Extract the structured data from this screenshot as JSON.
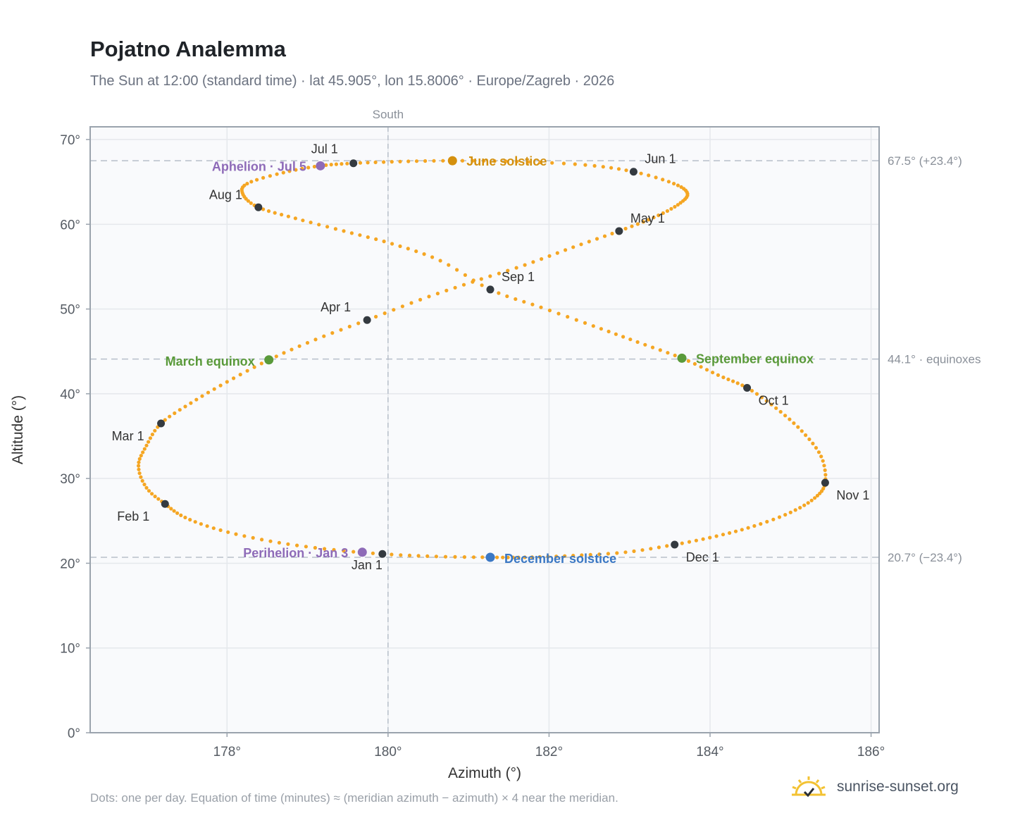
{
  "header": {
    "title": "Pojatno Analemma",
    "subtitle": "The Sun at 12:00 (standard time) · lat 45.905°, lon 15.8006° · Europe/Zagreb · 2026"
  },
  "footer": {
    "note": "Dots: one per day. Equation of time (minutes) ≈ (meridian azimuth − azimuth) × 4 near the meridian.",
    "brand": "sunrise-sunset.org",
    "brand_icon": "sun-icon"
  },
  "colors": {
    "curve": "#f5a623",
    "month_marker": "#343a40",
    "solstice_june": "#d4900e",
    "solstice_december": "#3b78c4",
    "equinox": "#5a9a3a",
    "apsis": "#8e6bb8",
    "grid": "#e5e8ec",
    "reference_line": "#b7bfca",
    "frame": "#9aa3ad",
    "plot_bg": "#f9fafc"
  },
  "chart_data": {
    "type": "scatter",
    "title": "Pojatno Analemma",
    "xlabel": "Azimuth (°)",
    "ylabel": "Altitude (°)",
    "xlim": [
      176.3,
      186.1
    ],
    "ylim": [
      0,
      71.5
    ],
    "xticks": [
      178,
      180,
      182,
      184,
      186
    ],
    "xtick_labels": [
      "178°",
      "180°",
      "182°",
      "184°",
      "186°"
    ],
    "yticks": [
      0,
      10,
      20,
      30,
      40,
      50,
      60,
      70
    ],
    "ytick_labels": [
      "0°",
      "10°",
      "20°",
      "30°",
      "40°",
      "50°",
      "60°",
      "70°"
    ],
    "grid": true,
    "meridian": {
      "azimuth": 180,
      "label": "South"
    },
    "reference_lines": [
      {
        "altitude": 67.5,
        "label": "67.5° (+23.4°)"
      },
      {
        "altitude": 44.1,
        "label": "44.1° · equinoxes"
      },
      {
        "altitude": 20.7,
        "label": "20.7° (−23.4°)"
      }
    ],
    "series": [
      {
        "kind": "daily_positions",
        "points": [
          [
            179.93,
            21.1
          ],
          [
            179.21,
            21.7
          ],
          [
            178.54,
            22.6
          ],
          [
            177.92,
            23.9
          ],
          [
            177.48,
            25.4
          ],
          [
            177.23,
            27.0
          ],
          [
            177.0,
            28.9
          ],
          [
            176.9,
            31.5
          ],
          [
            177.0,
            33.9
          ],
          [
            177.18,
            36.5
          ],
          [
            177.55,
            38.9
          ],
          [
            178.0,
            41.4
          ],
          [
            178.52,
            44.0
          ],
          [
            179.1,
            46.4
          ],
          [
            179.74,
            48.7
          ],
          [
            180.4,
            51.1
          ],
          [
            181.05,
            53.2
          ],
          [
            181.7,
            55.2
          ],
          [
            182.3,
            57.3
          ],
          [
            182.87,
            59.2
          ],
          [
            183.3,
            60.8
          ],
          [
            183.6,
            62.3
          ],
          [
            183.72,
            63.6
          ],
          [
            183.55,
            64.8
          ],
          [
            183.05,
            66.2
          ],
          [
            182.45,
            67.0
          ],
          [
            181.6,
            67.4
          ],
          [
            180.8,
            67.5
          ],
          [
            180.15,
            67.4
          ],
          [
            179.57,
            67.2
          ],
          [
            179.16,
            66.9
          ],
          [
            178.7,
            66.1
          ],
          [
            178.25,
            64.8
          ],
          [
            178.2,
            63.5
          ],
          [
            178.39,
            62.0
          ],
          [
            178.85,
            60.7
          ],
          [
            179.45,
            59.2
          ],
          [
            180.05,
            57.7
          ],
          [
            180.65,
            55.7
          ],
          [
            181.27,
            52.3
          ],
          [
            181.9,
            50.2
          ],
          [
            182.55,
            48.0
          ],
          [
            183.1,
            46.1
          ],
          [
            183.65,
            44.2
          ],
          [
            184.1,
            42.2
          ],
          [
            184.46,
            40.7
          ],
          [
            184.82,
            38.3
          ],
          [
            185.14,
            35.6
          ],
          [
            185.38,
            32.6
          ],
          [
            185.43,
            29.5
          ],
          [
            185.3,
            27.7
          ],
          [
            185.0,
            26.0
          ],
          [
            184.55,
            24.4
          ],
          [
            184.08,
            23.2
          ],
          [
            183.56,
            22.2
          ],
          [
            182.95,
            21.3
          ],
          [
            182.3,
            20.9
          ],
          [
            181.7,
            20.7
          ],
          [
            181.27,
            20.7
          ],
          [
            180.6,
            20.8
          ],
          [
            179.93,
            21.1
          ]
        ]
      }
    ],
    "month_markers": [
      {
        "label": "Jan 1",
        "azimuth": 179.93,
        "altitude": 21.1
      },
      {
        "label": "Feb 1",
        "azimuth": 177.23,
        "altitude": 27.0
      },
      {
        "label": "Mar 1",
        "azimuth": 177.18,
        "altitude": 36.5
      },
      {
        "label": "Apr 1",
        "azimuth": 179.74,
        "altitude": 48.7
      },
      {
        "label": "May 1",
        "azimuth": 182.87,
        "altitude": 59.2
      },
      {
        "label": "Jun 1",
        "azimuth": 183.05,
        "altitude": 66.2
      },
      {
        "label": "Jul 1",
        "azimuth": 179.57,
        "altitude": 67.2
      },
      {
        "label": "Aug 1",
        "azimuth": 178.39,
        "altitude": 62.0
      },
      {
        "label": "Sep 1",
        "azimuth": 181.27,
        "altitude": 52.3
      },
      {
        "label": "Oct 1",
        "azimuth": 184.46,
        "altitude": 40.7
      },
      {
        "label": "Nov 1",
        "azimuth": 185.43,
        "altitude": 29.5
      },
      {
        "label": "Dec 1",
        "azimuth": 183.56,
        "altitude": 22.2
      }
    ],
    "events": [
      {
        "label": "June solstice",
        "azimuth": 180.8,
        "altitude": 67.5,
        "kind": "solstice_june"
      },
      {
        "label": "December solstice",
        "azimuth": 181.27,
        "altitude": 20.7,
        "kind": "solstice_december"
      },
      {
        "label": "March equinox",
        "azimuth": 178.52,
        "altitude": 44.0,
        "kind": "equinox"
      },
      {
        "label": "September equinox",
        "azimuth": 183.65,
        "altitude": 44.2,
        "kind": "equinox"
      },
      {
        "label": "Aphelion · Jul 5",
        "azimuth": 179.16,
        "altitude": 66.9,
        "kind": "apsis"
      },
      {
        "label": "Perihelion · Jan 3",
        "azimuth": 179.68,
        "altitude": 21.3,
        "kind": "apsis"
      }
    ]
  }
}
